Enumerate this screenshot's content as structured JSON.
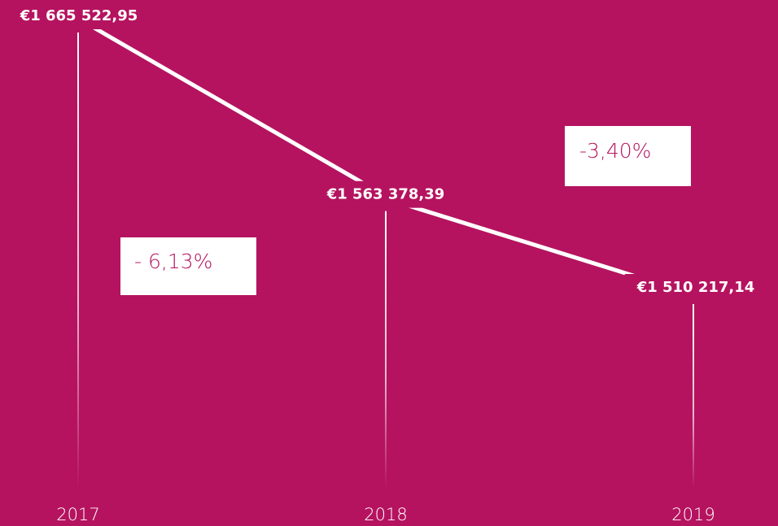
{
  "chart_data": {
    "type": "line",
    "categories": [
      "2017",
      "2018",
      "2019"
    ],
    "values": [
      1665522.95,
      1563378.39,
      1510217.14
    ],
    "value_labels": [
      "€1 665 522,95",
      "€1 563 378,39",
      "€1 510 217,14"
    ],
    "annotations": [
      "- 6,13%",
      "-3,40%"
    ],
    "color": "#ffffff",
    "background": "#b5135f"
  }
}
